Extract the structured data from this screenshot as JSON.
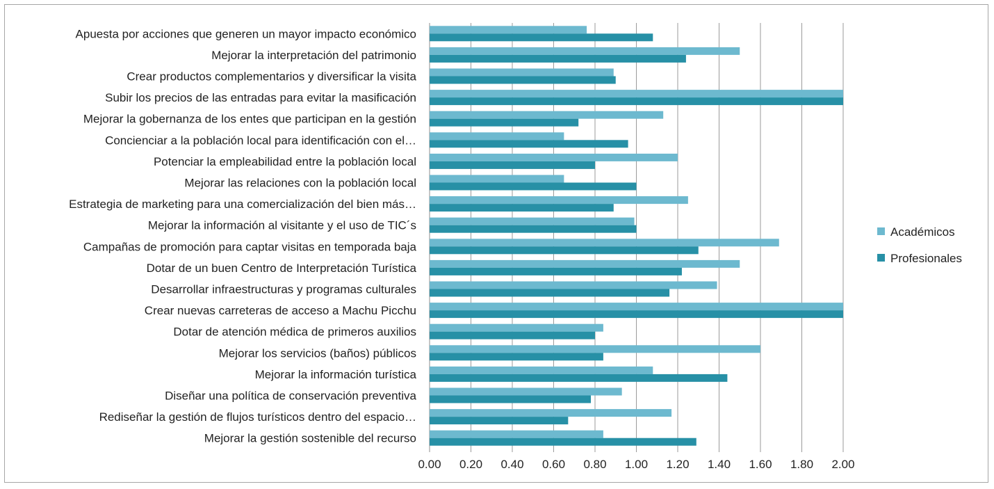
{
  "chart_data": {
    "type": "bar",
    "orientation": "horizontal",
    "categories": [
      "Apuesta por  acciones que generen un mayor impacto económico",
      "Mejorar la interpretación del patrimonio",
      "Crear productos complementarios  y diversificar la visita",
      "Subir los precios de las entradas para evitar la masificación",
      "Mejorar la gobernanza de los entes que participan en la gestión",
      "Concienciar a la población local para identificación con el…",
      "Potenciar la empleabilidad  entre la población local",
      "Mejorar las  relaciones con la población local",
      "Estrategia de marketing para una comercialización del bien más…",
      "Mejorar la información al visitante  y el uso de TIC´s",
      "Campañas de promoción para captar visitas en temporada baja",
      "Dotar de un buen Centro de Interpretación Turística",
      "Desarrollar infraestructuras y programas  culturales",
      "Crear nuevas carreteras de acceso a Machu Picchu",
      "Dotar de atención médica de primeros auxilios",
      "Mejorar los servicios (baños)  públicos",
      "Mejorar la información  turística",
      "Diseñar una política de conservación preventiva",
      "Rediseñar la gestión de flujos turísticos dentro del espacio…",
      "Mejorar la gestión sostenible del recurso"
    ],
    "series": [
      {
        "name": "Académicos",
        "color": "#6db9cf",
        "values": [
          0.76,
          1.5,
          0.89,
          2.0,
          1.13,
          0.65,
          1.2,
          0.65,
          1.25,
          0.99,
          1.69,
          1.5,
          1.39,
          2.0,
          0.84,
          1.6,
          1.08,
          0.93,
          1.17,
          0.84
        ]
      },
      {
        "name": "Profesionales",
        "color": "#2790a6",
        "values": [
          1.08,
          1.24,
          0.9,
          2.0,
          0.72,
          0.96,
          0.8,
          1.0,
          0.89,
          1.0,
          1.3,
          1.22,
          1.16,
          2.0,
          0.8,
          0.84,
          1.44,
          0.78,
          0.67,
          1.29
        ]
      }
    ],
    "xlim": [
      0,
      2.0
    ],
    "xticks": [
      "0.00",
      "0.20",
      "0.40",
      "0.60",
      "0.80",
      "1.00",
      "1.20",
      "1.40",
      "1.60",
      "1.80",
      "2.00"
    ],
    "grid": true,
    "legend_position": "right",
    "title": "",
    "xlabel": "",
    "ylabel": ""
  }
}
